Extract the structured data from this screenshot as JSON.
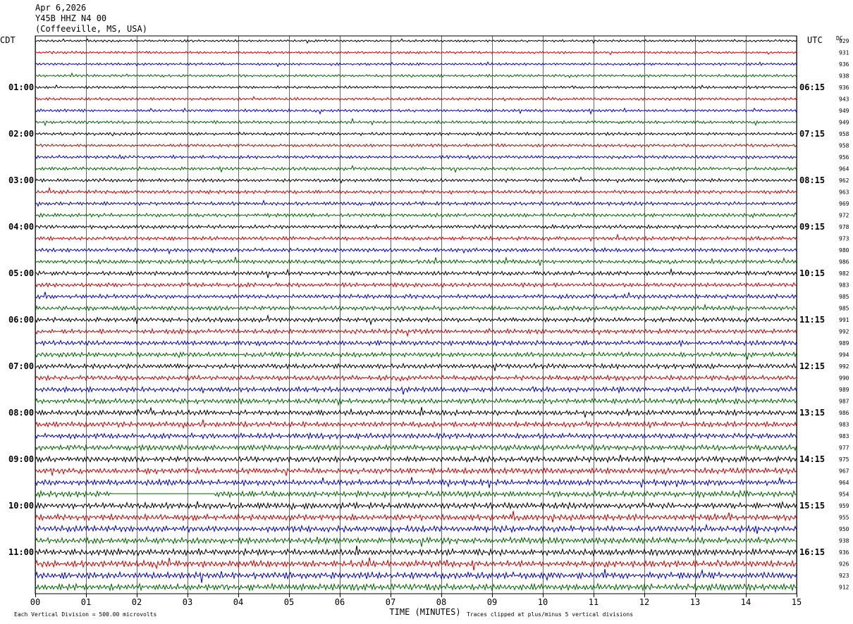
{
  "header": {
    "date": "Apr 6,2026",
    "station": "Y45B HHZ N4 00",
    "location": "(Coffeeville, MS, USA)"
  },
  "chart_data": {
    "type": "line",
    "description_visible": "helicorder",
    "left_axis_label": "CDT",
    "right_axis_label": "UTC",
    "dc_label": "DC",
    "xlabel": "TIME (MINUTES)",
    "x_ticks": [
      "00",
      "01",
      "02",
      "03",
      "04",
      "05",
      "06",
      "07",
      "08",
      "09",
      "10",
      "11",
      "12",
      "13",
      "14",
      "15"
    ],
    "xlim": [
      0,
      15
    ],
    "left_hour_labels": [
      "01:00",
      "02:00",
      "03:00",
      "04:00",
      "05:00",
      "06:00",
      "07:00",
      "08:00",
      "09:00",
      "10:00",
      "11:00"
    ],
    "right_hour_labels": [
      "06:15",
      "07:15",
      "08:15",
      "09:15",
      "10:15",
      "11:15",
      "12:15",
      "13:15",
      "14:15",
      "15:15",
      "16:15"
    ],
    "hour_label_row_start": 4,
    "hour_label_row_step": 4,
    "trace_colors": [
      "#000000",
      "#cc0000",
      "#0000cc",
      "#006400"
    ],
    "dc_values": [
      929,
      931,
      936,
      938,
      936,
      943,
      949,
      949,
      958,
      958,
      956,
      964,
      962,
      963,
      969,
      972,
      978,
      973,
      980,
      986,
      982,
      983,
      985,
      985,
      991,
      992,
      989,
      994,
      992,
      990,
      989,
      987,
      986,
      983,
      983,
      977,
      975,
      967,
      964,
      954,
      959,
      955,
      950,
      938,
      936,
      926,
      923,
      912
    ],
    "flat_segment": {
      "row": 39,
      "start_min": 1.5,
      "end_min": 3.5
    },
    "footer_left": "Each Vertical Division =  500.00 microvolts",
    "footer_right": "Traces clipped at plus/minus 5 vertical divisions"
  }
}
